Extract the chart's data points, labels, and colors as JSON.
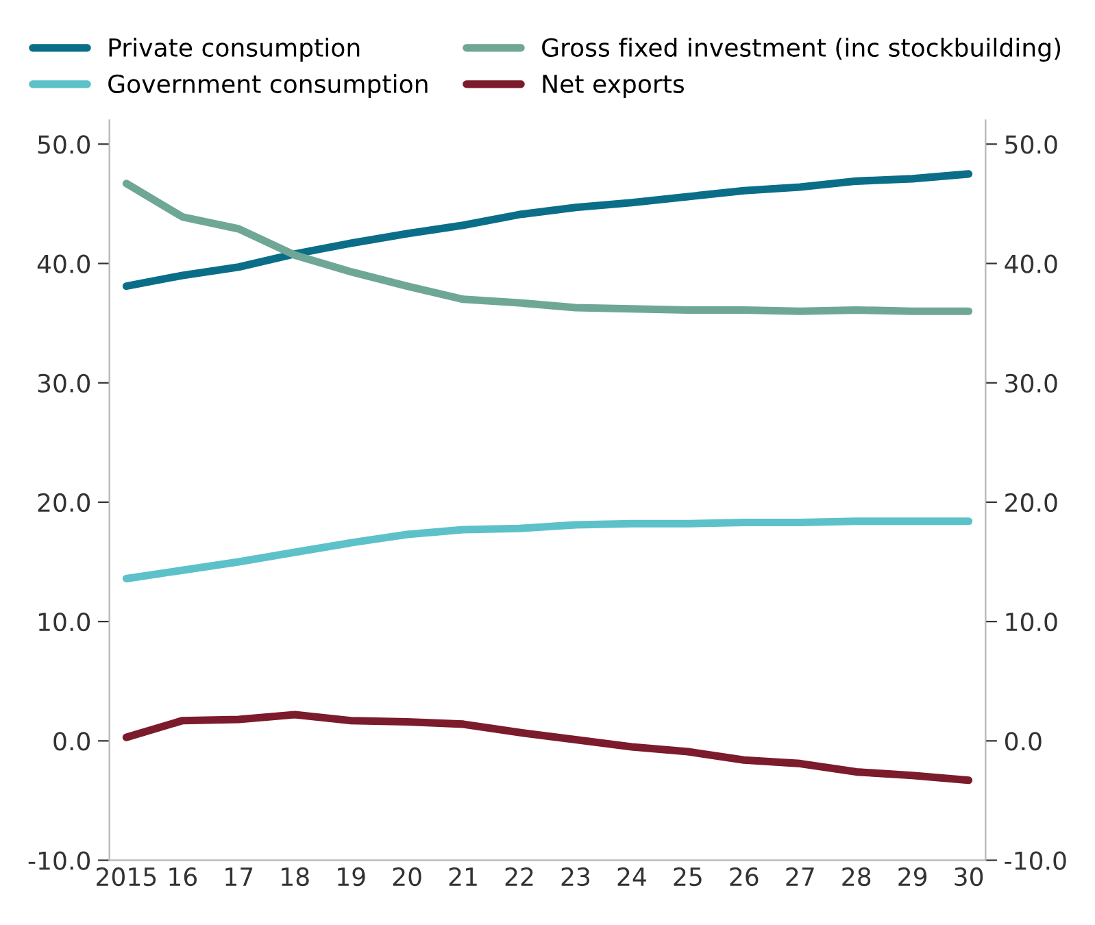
{
  "chart_data": {
    "type": "line",
    "categories": [
      "2015",
      "16",
      "17",
      "18",
      "19",
      "20",
      "21",
      "22",
      "23",
      "24",
      "25",
      "26",
      "27",
      "28",
      "29",
      "30"
    ],
    "series": [
      {
        "name": "Private consumption",
        "color": "#0b6e88",
        "values": [
          38.1,
          39.0,
          39.7,
          40.8,
          41.7,
          42.5,
          43.2,
          44.1,
          44.7,
          45.1,
          45.6,
          46.1,
          46.4,
          46.9,
          47.1,
          47.5
        ]
      },
      {
        "name": "Government consumption",
        "color": "#5dc1c9",
        "values": [
          13.6,
          14.3,
          15.0,
          15.8,
          16.6,
          17.3,
          17.7,
          17.8,
          18.1,
          18.2,
          18.2,
          18.3,
          18.3,
          18.4,
          18.4,
          18.4
        ]
      },
      {
        "name": "Gross fixed investment (inc stockbuilding)",
        "color": "#6fa797",
        "values": [
          46.7,
          43.9,
          42.9,
          40.7,
          39.3,
          38.1,
          37.0,
          36.7,
          36.3,
          36.2,
          36.1,
          36.1,
          36.0,
          36.1,
          36.0,
          36.0
        ]
      },
      {
        "name": "Net exports",
        "color": "#7b1b2b",
        "values": [
          0.3,
          1.7,
          1.8,
          2.2,
          1.7,
          1.6,
          1.4,
          0.7,
          0.1,
          -0.5,
          -0.9,
          -1.6,
          -1.9,
          -2.6,
          -2.9,
          -3.3
        ]
      }
    ],
    "ylim": [
      -10,
      52
    ],
    "yticks": [
      {
        "value": -10,
        "label": "-10.0"
      },
      {
        "value": 0,
        "label": "0.0"
      },
      {
        "value": 10,
        "label": "10.0"
      },
      {
        "value": 20,
        "label": "20.0"
      },
      {
        "value": 30,
        "label": "30.0"
      },
      {
        "value": 40,
        "label": "40.0"
      },
      {
        "value": 50,
        "label": "50.0"
      }
    ],
    "y2lim": [
      -10,
      52
    ],
    "y2ticks": [
      {
        "value": -10,
        "label": "-10.0"
      },
      {
        "value": 0,
        "label": "0.0"
      },
      {
        "value": 10,
        "label": "10.0"
      },
      {
        "value": 20,
        "label": "20.0"
      },
      {
        "value": 30,
        "label": "30.0"
      },
      {
        "value": 40,
        "label": "40.0"
      },
      {
        "value": 50,
        "label": "50.0"
      }
    ],
    "grid": false,
    "legend": "top",
    "marker": "none",
    "line_style": "solid"
  }
}
